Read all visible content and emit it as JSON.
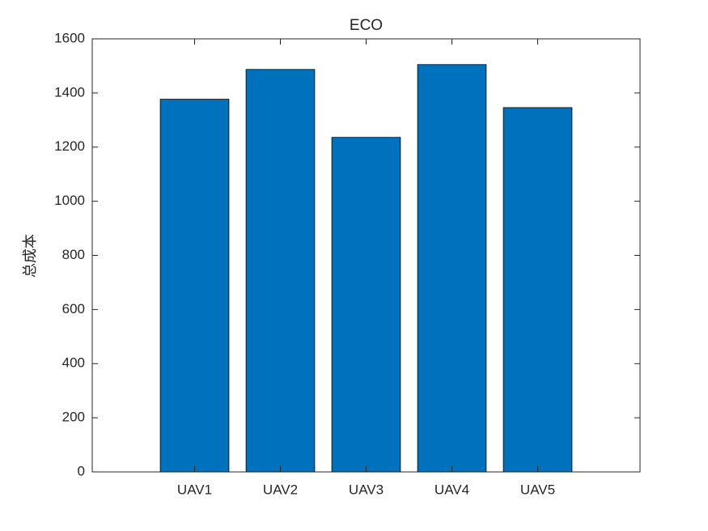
{
  "chart_data": {
    "type": "bar",
    "title": "ECO",
    "y_label": "总成本",
    "categories": [
      "UAV1",
      "UAV2",
      "UAV3",
      "UAV4",
      "UAV5"
    ],
    "values": [
      1377,
      1487,
      1236,
      1505,
      1346
    ],
    "color": "#0072bd",
    "ylim": [
      0,
      1600
    ],
    "yticks": [
      0,
      200,
      400,
      600,
      800,
      1000,
      1200,
      1400,
      1600
    ],
    "grid": false
  }
}
